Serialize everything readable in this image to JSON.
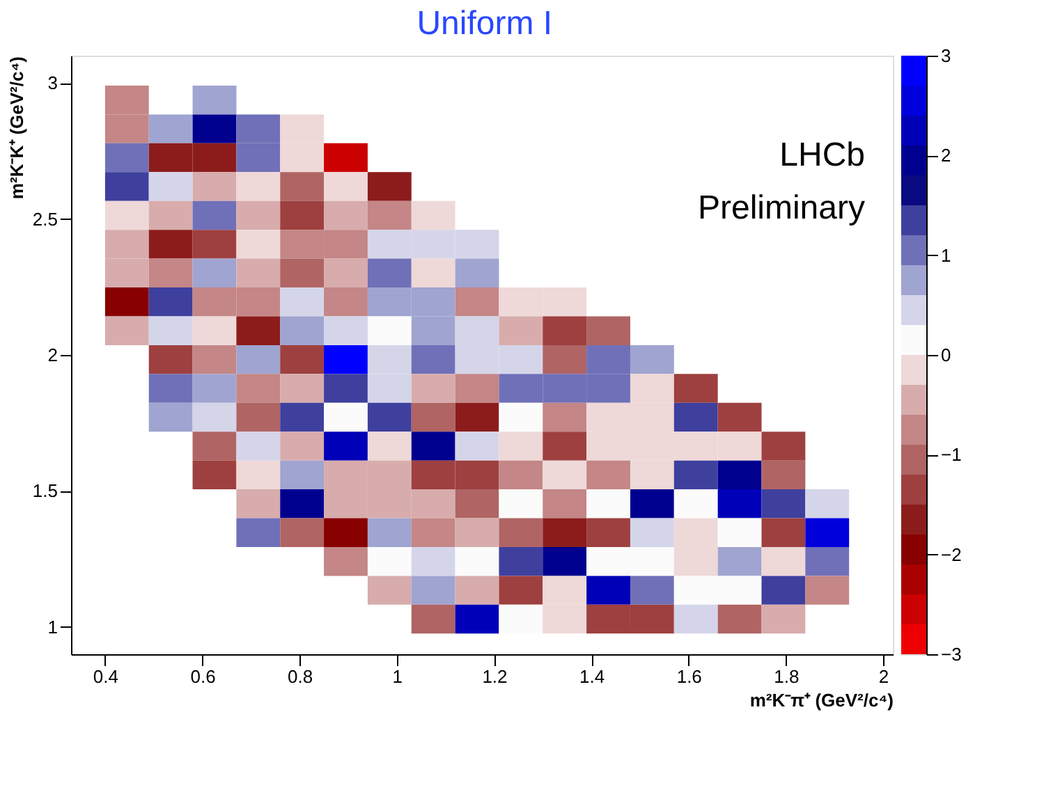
{
  "chart_data": {
    "type": "heatmap",
    "title": "Uniform I",
    "xlabel": "m²K⁻π⁺ (GeV²/c⁴)",
    "ylabel": "m²K⁻K⁺ (GeV²/c⁴)",
    "annotations": [
      "LHCb",
      "Preliminary"
    ],
    "x": [
      0.445,
      0.535,
      0.625,
      0.715,
      0.805,
      0.895,
      0.985,
      1.075,
      1.165,
      1.255,
      1.345,
      1.435,
      1.525,
      1.615,
      1.705,
      1.795,
      1.885
    ],
    "y": [
      2.937,
      2.831,
      2.725,
      2.619,
      2.513,
      2.407,
      2.301,
      2.195,
      2.089,
      1.983,
      1.877,
      1.771,
      1.665,
      1.559,
      1.453,
      1.347,
      1.241,
      1.135,
      1.029
    ],
    "cells": [
      [
        -0.75,
        null,
        0.75,
        null,
        null,
        null,
        null,
        null,
        null,
        null,
        null,
        null,
        null,
        null,
        null,
        null,
        null
      ],
      [
        -0.75,
        0.75,
        1.95,
        1.05,
        -0.15,
        null,
        null,
        null,
        null,
        null,
        null,
        null,
        null,
        null,
        null,
        null,
        null
      ],
      [
        1.05,
        -1.65,
        -1.65,
        1.05,
        -0.15,
        -2.55,
        null,
        null,
        null,
        null,
        null,
        null,
        null,
        null,
        null,
        null,
        null
      ],
      [
        1.35,
        0.45,
        -0.45,
        -0.15,
        -1.05,
        -0.15,
        -1.65,
        null,
        null,
        null,
        null,
        null,
        null,
        null,
        null,
        null,
        null
      ],
      [
        -0.15,
        -0.45,
        1.05,
        -0.45,
        -1.35,
        -0.45,
        -0.75,
        -0.15,
        null,
        null,
        null,
        null,
        null,
        null,
        null,
        null,
        null
      ],
      [
        -0.45,
        -1.65,
        -1.35,
        -0.15,
        -0.75,
        -0.75,
        0.45,
        0.45,
        0.45,
        null,
        null,
        null,
        null,
        null,
        null,
        null,
        null
      ],
      [
        -0.45,
        -0.75,
        0.75,
        -0.45,
        -1.05,
        -0.45,
        1.05,
        -0.15,
        0.75,
        null,
        null,
        null,
        null,
        null,
        null,
        null,
        null
      ],
      [
        -1.95,
        1.35,
        -0.75,
        -0.75,
        0.45,
        -0.75,
        0.75,
        0.75,
        -0.75,
        -0.15,
        -0.15,
        null,
        null,
        null,
        null,
        null,
        null
      ],
      [
        -0.45,
        0.45,
        -0.15,
        -1.65,
        0.75,
        0.45,
        0.15,
        0.75,
        0.45,
        -0.45,
        -1.35,
        -1.05,
        null,
        null,
        null,
        null,
        null
      ],
      [
        null,
        -1.35,
        -0.75,
        0.75,
        -1.35,
        2.85,
        0.45,
        1.05,
        0.45,
        0.45,
        -1.05,
        1.05,
        0.75,
        null,
        null,
        null,
        null
      ],
      [
        null,
        1.05,
        0.75,
        -0.75,
        -0.45,
        1.35,
        0.45,
        -0.45,
        -0.75,
        1.05,
        1.05,
        1.05,
        -0.15,
        -1.35,
        null,
        null,
        null
      ],
      [
        null,
        0.75,
        0.45,
        -1.05,
        1.35,
        0.15,
        1.35,
        -1.05,
        -1.65,
        0.15,
        -0.75,
        -0.15,
        -0.15,
        1.35,
        -1.35,
        null,
        null
      ],
      [
        null,
        null,
        -1.05,
        0.45,
        -0.45,
        2.25,
        -0.15,
        1.95,
        0.45,
        -0.15,
        -1.35,
        -0.15,
        -0.15,
        -0.15,
        -0.15,
        -1.35,
        null
      ],
      [
        null,
        null,
        -1.35,
        -0.15,
        0.75,
        -0.45,
        -0.45,
        -1.35,
        -1.35,
        -0.75,
        -0.15,
        -0.75,
        -0.15,
        1.35,
        1.95,
        -1.05,
        null
      ],
      [
        null,
        null,
        null,
        -0.45,
        1.95,
        -0.45,
        -0.45,
        -0.45,
        -1.05,
        0.15,
        -0.75,
        0.15,
        1.95,
        0.15,
        2.25,
        1.35,
        0.45
      ],
      [
        null,
        null,
        null,
        1.05,
        -1.05,
        -1.95,
        0.75,
        -0.75,
        -0.45,
        -1.05,
        -1.65,
        -1.35,
        0.45,
        -0.15,
        0.15,
        -1.35,
        2.55
      ],
      [
        null,
        null,
        null,
        null,
        null,
        -0.75,
        0.15,
        0.45,
        0.15,
        1.35,
        1.95,
        0.15,
        0.15,
        -0.15,
        0.75,
        -0.15,
        1.05
      ],
      [
        null,
        null,
        null,
        null,
        null,
        null,
        -0.45,
        0.75,
        -0.45,
        -1.35,
        -0.15,
        2.25,
        1.05,
        0.15,
        0.15,
        1.35,
        -0.75
      ],
      [
        null,
        null,
        null,
        null,
        null,
        null,
        null,
        -1.05,
        2.25,
        0.15,
        -0.15,
        -1.35,
        -1.35,
        0.45,
        -1.05,
        -0.45,
        null
      ]
    ],
    "xlim": [
      0.33,
      2.02
    ],
    "xticks": [
      0.4,
      0.6,
      0.8,
      1,
      1.2,
      1.4,
      1.6,
      1.8,
      2
    ],
    "ylim": [
      0.9,
      3.1
    ],
    "yticks": [
      1,
      1.5,
      2,
      2.5,
      3
    ],
    "clim": [
      -3,
      3
    ],
    "cticks": [
      -3,
      -2,
      -1,
      0,
      1,
      2,
      3
    ]
  }
}
